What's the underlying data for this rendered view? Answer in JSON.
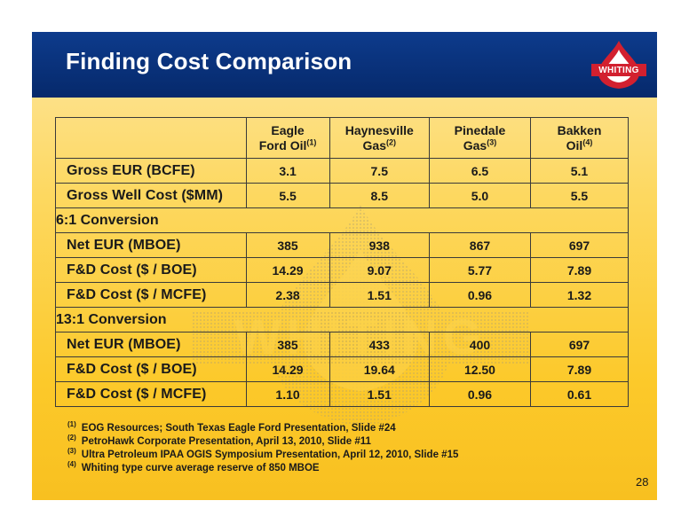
{
  "slide": {
    "title": "Finding Cost Comparison",
    "logo_text": "WHITING",
    "page_number": "28"
  },
  "table": {
    "columns": [
      {
        "line1": "Eagle",
        "line2": "Ford Oil",
        "ref": "(1)"
      },
      {
        "line1": "Haynesville",
        "line2": "Gas",
        "ref": "(2)"
      },
      {
        "line1": "Pinedale",
        "line2": "Gas",
        "ref": "(3)"
      },
      {
        "line1": "Bakken",
        "line2": "Oil",
        "ref": "(4)"
      }
    ],
    "top_rows": [
      {
        "label": "Gross EUR (BCFE)",
        "values": [
          "3.1",
          "7.5",
          "6.5",
          "5.1"
        ]
      },
      {
        "label": "Gross Well Cost ($MM)",
        "values": [
          "5.5",
          "8.5",
          "5.0",
          "5.5"
        ]
      }
    ],
    "section1": {
      "title": "6:1 Conversion",
      "rows": [
        {
          "label": "Net EUR (MBOE)",
          "values": [
            "385",
            "938",
            "867",
            "697"
          ]
        },
        {
          "label": "F&D Cost  ($ / BOE)",
          "values": [
            "14.29",
            "9.07",
            "5.77",
            "7.89"
          ]
        },
        {
          "label": "F&D Cost ($ / MCFE)",
          "values": [
            "2.38",
            "1.51",
            "0.96",
            "1.32"
          ]
        }
      ]
    },
    "section2": {
      "title": "13:1 Conversion",
      "rows": [
        {
          "label": "Net EUR (MBOE)",
          "values": [
            "385",
            "433",
            "400",
            "697"
          ]
        },
        {
          "label": "F&D Cost  ($ / BOE)",
          "values": [
            "14.29",
            "19.64",
            "12.50",
            "7.89"
          ]
        },
        {
          "label": "F&D Cost ($ / MCFE)",
          "values": [
            "1.10",
            "1.51",
            "0.96",
            "0.61"
          ]
        }
      ]
    }
  },
  "footnotes": [
    {
      "ref": "(1)",
      "text": "EOG Resources; South Texas Eagle Ford Presentation, Slide #24"
    },
    {
      "ref": "(2)",
      "text": "PetroHawk Corporate Presentation, April 13, 2010, Slide #11"
    },
    {
      "ref": "(3)",
      "text": "Ultra Petroleum IPAA OGIS Symposium Presentation, April 12, 2010, Slide #15"
    },
    {
      "ref": "(4)",
      "text": "Whiting type curve average reserve of 850 MBOE"
    }
  ],
  "colors": {
    "header_blue": "#0d3b8c",
    "logo_red": "#d2202f",
    "background_yellow": "#fdd860"
  }
}
